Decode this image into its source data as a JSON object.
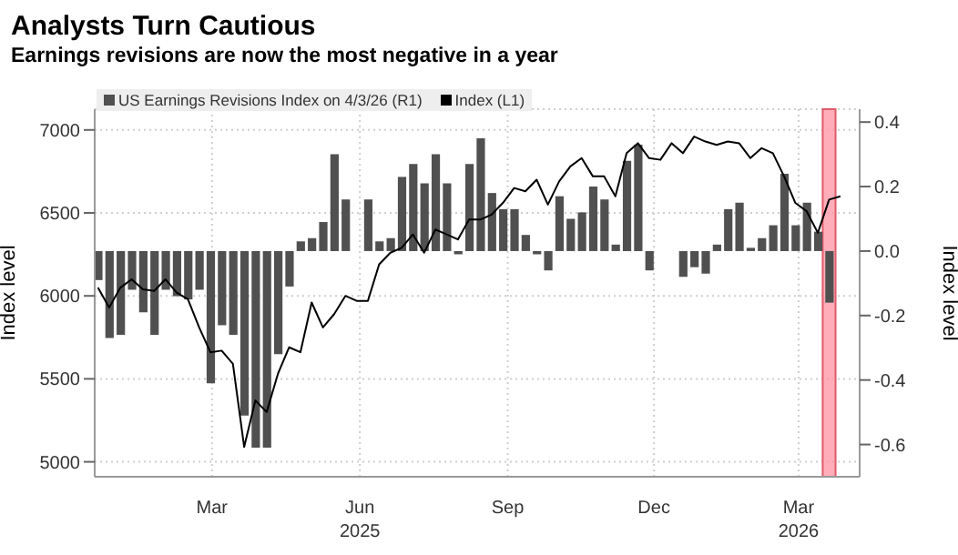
{
  "chart_data": {
    "type": "bar",
    "title": "Analysts Turn Cautious",
    "subtitle": "Earnings revisions are now the most negative in a year",
    "ylabel": "Index level",
    "y2label": "Index level",
    "x": [
      "2025-01-03",
      "2025-01-10",
      "2025-01-17",
      "2025-01-24",
      "2025-01-31",
      "2025-02-07",
      "2025-02-14",
      "2025-02-21",
      "2025-02-28",
      "2025-03-07",
      "2025-03-14",
      "2025-03-21",
      "2025-03-28",
      "2025-04-04",
      "2025-04-11",
      "2025-04-18",
      "2025-04-25",
      "2025-05-02",
      "2025-05-09",
      "2025-05-16",
      "2025-05-23",
      "2025-05-30",
      "2025-06-06",
      "2025-06-13",
      "2025-06-20",
      "2025-06-27",
      "2025-07-04",
      "2025-07-11",
      "2025-07-18",
      "2025-07-25",
      "2025-08-01",
      "2025-08-08",
      "2025-08-15",
      "2025-08-22",
      "2025-08-29",
      "2025-09-05",
      "2025-09-12",
      "2025-09-19",
      "2025-09-26",
      "2025-10-03",
      "2025-10-10",
      "2025-10-17",
      "2025-10-24",
      "2025-10-31",
      "2025-11-07",
      "2025-11-14",
      "2025-11-21",
      "2025-11-28",
      "2025-12-05",
      "2025-12-12",
      "2025-12-19",
      "2025-12-26",
      "2026-01-02",
      "2026-01-09",
      "2026-01-16",
      "2026-01-23",
      "2026-01-30",
      "2026-02-06",
      "2026-02-13",
      "2026-02-20",
      "2026-02-27",
      "2026-03-06",
      "2026-03-13",
      "2026-03-20",
      "2026-03-27",
      "2026-04-03",
      "2026-04-10"
    ],
    "series": [
      {
        "name": "US Earnings Revisions Index on 4/3/26 (R1)",
        "axis": "y2",
        "color": "#505050",
        "values": [
          -0.09,
          -0.27,
          -0.26,
          -0.12,
          -0.19,
          -0.26,
          -0.12,
          -0.14,
          -0.15,
          -0.12,
          -0.41,
          -0.23,
          -0.26,
          -0.51,
          -0.61,
          -0.61,
          -0.32,
          -0.11,
          0.03,
          0.04,
          0.09,
          0.3,
          0.16,
          0,
          0.16,
          0.03,
          0.04,
          0.23,
          0.27,
          0.21,
          0.3,
          0.21,
          -0.01,
          0.27,
          0.35,
          0.18,
          0.13,
          0.13,
          0.05,
          -0.01,
          -0.06,
          0.17,
          0.1,
          0.12,
          0.2,
          0.16,
          0.02,
          0.28,
          0.33,
          -0.06,
          0,
          0,
          -0.08,
          -0.05,
          -0.07,
          0.02,
          0.13,
          0.15,
          0.01,
          0.04,
          0.08,
          0.24,
          0.08,
          0.15,
          0.06,
          -0.16,
          null
        ]
      },
      {
        "name": "Index (L1)",
        "type": "line",
        "color": "#000000",
        "values": [
          6050,
          5930,
          6050,
          6100,
          6040,
          6030,
          6100,
          6020,
          5980,
          5810,
          5660,
          5670,
          5590,
          5090,
          5370,
          5300,
          5530,
          5690,
          5660,
          5960,
          5810,
          5890,
          6000,
          5970,
          5970,
          6190,
          6260,
          6290,
          6370,
          6260,
          6400,
          6370,
          6340,
          6460,
          6460,
          6490,
          6560,
          6650,
          6630,
          6700,
          6550,
          6690,
          6780,
          6830,
          6720,
          6720,
          6600,
          6860,
          6920,
          6830,
          6820,
          6920,
          6860,
          6960,
          6930,
          6910,
          6930,
          6920,
          6830,
          6890,
          6860,
          6720,
          6560,
          6510,
          6380,
          6580,
          6600
        ]
      }
    ],
    "xlim": [
      "2025-01-01",
      "2026-04-22"
    ],
    "xticks": [
      {
        "value": "2025-03-15",
        "label": "Mar"
      },
      {
        "value": "2025-06-15",
        "label": "Jun\n2025"
      },
      {
        "value": "2025-09-15",
        "label": "Sep"
      },
      {
        "value": "2025-12-15",
        "label": "Dec"
      },
      {
        "value": "2026-03-15",
        "label": "Mar\n2026"
      }
    ],
    "ylim": [
      4910,
      7125
    ],
    "yticks": [
      5000,
      5500,
      6000,
      6500,
      7000
    ],
    "y2lim": [
      -0.7,
      0.44
    ],
    "y2ticks": [
      {
        "value": -0.6,
        "label": "-0.6"
      },
      {
        "value": -0.4,
        "label": "-0.4"
      },
      {
        "value": -0.2,
        "label": "-0.2"
      },
      {
        "value": 0,
        "label": "0.0"
      },
      {
        "value": 0.2,
        "label": "0.2"
      },
      {
        "value": 0.4,
        "label": "0.4"
      }
    ],
    "bands": [
      {
        "axis": "x",
        "from": "2026-03-30",
        "to": "2026-04-07",
        "color": "#ff9aa8"
      }
    ],
    "grid": true,
    "legend": "top left",
    "marker": "none",
    "line_style": "solid"
  }
}
